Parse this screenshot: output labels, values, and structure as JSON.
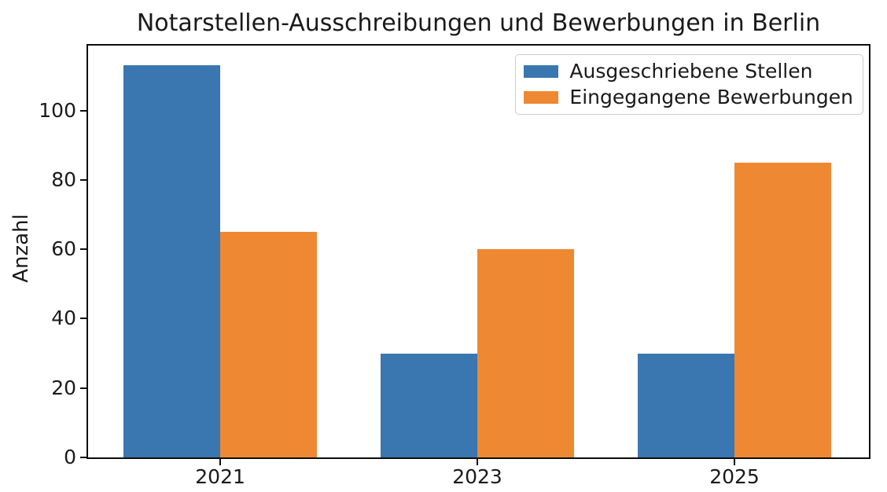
{
  "chart_data": {
    "type": "bar",
    "title": "Notarstellen-Ausschreibungen und Bewerbungen in Berlin",
    "xlabel": "",
    "ylabel": "Anzahl",
    "categories": [
      "2021",
      "2023",
      "2025"
    ],
    "series": [
      {
        "name": "Ausgeschriebene Stellen",
        "color": "#3a76af",
        "values": [
          113,
          30,
          30
        ]
      },
      {
        "name": "Eingegangene Bewerbungen",
        "color": "#ee8833",
        "values": [
          65,
          60,
          85
        ]
      }
    ],
    "yticks": [
      0,
      20,
      40,
      60,
      80,
      100
    ],
    "ylim": [
      0,
      118.7
    ],
    "xlim": [
      -0.514,
      2.523
    ],
    "bar_width": 0.376,
    "grid": false,
    "legend_position": "upper right",
    "background": "#ffffff"
  }
}
